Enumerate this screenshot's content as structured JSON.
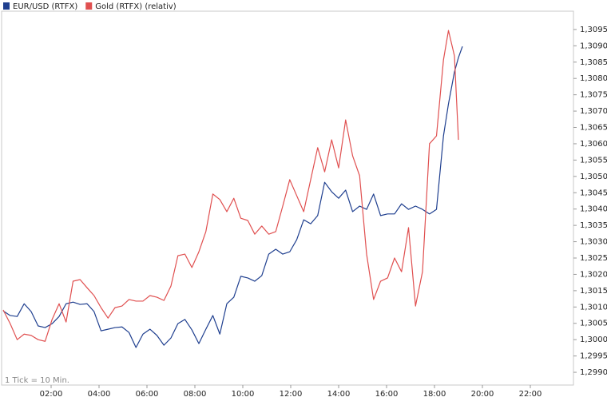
{
  "chart_data": {
    "type": "line",
    "footnote": "1 Tick = 10 Min.",
    "x": [
      0,
      17.5,
      35,
      52.5,
      70,
      87.5,
      105,
      122.5,
      140,
      157.5,
      175,
      192.5,
      210,
      227.5,
      245,
      262.5,
      280,
      297.5,
      315,
      332.5,
      350,
      367.5,
      385,
      402.5,
      420,
      437.5,
      455,
      472.5,
      490,
      507.5,
      525,
      542.5,
      560,
      577.5,
      595,
      612.5,
      630,
      647.5,
      665,
      682.5,
      700,
      717.5,
      735,
      752.5,
      770,
      787.5,
      805,
      822.5,
      840,
      857.5,
      875,
      892.5,
      910,
      927.5,
      945,
      962.5,
      980,
      997.5,
      1015,
      1032.5,
      1050,
      1067.5,
      1085,
      1102.5,
      1115,
      1130,
      1140,
      1150
    ],
    "series": [
      {
        "name": "EUR/USD (RTFX)",
        "color": "#1f3f8f",
        "values": [
          1.30088,
          1.30074,
          1.30071,
          1.3011,
          1.30086,
          1.30042,
          1.30037,
          1.30049,
          1.30071,
          1.3011,
          1.30115,
          1.30108,
          1.3011,
          1.30086,
          1.30027,
          1.30032,
          1.30037,
          1.30039,
          1.30022,
          1.29976,
          1.30017,
          1.30032,
          1.30013,
          1.29983,
          1.30005,
          1.30049,
          1.30062,
          1.3003,
          1.29988,
          1.30032,
          1.30074,
          1.30017,
          1.3011,
          1.3013,
          1.30194,
          1.30189,
          1.30179,
          1.30196,
          1.30262,
          1.30277,
          1.30262,
          1.30269,
          1.30306,
          1.30367,
          1.30355,
          1.3038,
          1.30482,
          1.30453,
          1.30433,
          1.30458,
          1.30392,
          1.30409,
          1.30399,
          1.30446,
          1.3038,
          1.30385,
          1.30385,
          1.30416,
          1.30399,
          1.30409,
          1.30399,
          1.30385,
          1.30399,
          1.30624,
          1.30722,
          1.3082,
          1.30864,
          1.30898
        ]
      },
      {
        "name": "Gold (RTFX) (relativ)",
        "color": "#e05050",
        "values": [
          1.30091,
          1.30049,
          1.3,
          1.30017,
          1.30013,
          1.3,
          1.29995,
          1.30062,
          1.3011,
          1.30054,
          1.30179,
          1.30184,
          1.30159,
          1.30135,
          1.30098,
          1.30066,
          1.30098,
          1.30103,
          1.30123,
          1.30118,
          1.30118,
          1.30135,
          1.3013,
          1.3012,
          1.30164,
          1.30257,
          1.30262,
          1.30221,
          1.30269,
          1.30331,
          1.30446,
          1.30429,
          1.30392,
          1.30433,
          1.30372,
          1.30365,
          1.30323,
          1.30348,
          1.30323,
          1.30331,
          1.30409,
          1.3049,
          1.30441,
          1.30392,
          1.3049,
          1.30588,
          1.30514,
          1.30612,
          1.30526,
          1.30673,
          1.30563,
          1.30502,
          1.30262,
          1.30123,
          1.30179,
          1.30189,
          1.3025,
          1.30208,
          1.30343,
          1.30103,
          1.30208,
          1.306,
          1.30624,
          1.30857,
          1.30947,
          1.30869,
          1.30612,
          null
        ]
      }
    ],
    "xlim": [
      -4,
      1428
    ],
    "xticks": [
      {
        "value": 120,
        "label": "02:00"
      },
      {
        "value": 240,
        "label": "04:00"
      },
      {
        "value": 360,
        "label": "06:00"
      },
      {
        "value": 480,
        "label": "08:00"
      },
      {
        "value": 600,
        "label": "10:00"
      },
      {
        "value": 720,
        "label": "12:00"
      },
      {
        "value": 840,
        "label": "14:00"
      },
      {
        "value": 960,
        "label": "16:00"
      },
      {
        "value": 1080,
        "label": "18:00"
      },
      {
        "value": 1200,
        "label": "20:00"
      },
      {
        "value": 1320,
        "label": "22:00"
      }
    ],
    "ylim": [
      1.29861,
      1.31006
    ],
    "yticks": [
      {
        "value": 1.299,
        "label": "1,2990"
      },
      {
        "value": 1.2995,
        "label": "1,2995"
      },
      {
        "value": 1.3,
        "label": "1,3000"
      },
      {
        "value": 1.3005,
        "label": "1,3005"
      },
      {
        "value": 1.301,
        "label": "1,3010"
      },
      {
        "value": 1.3015,
        "label": "1,3015"
      },
      {
        "value": 1.302,
        "label": "1,3020"
      },
      {
        "value": 1.3025,
        "label": "1,3025"
      },
      {
        "value": 1.303,
        "label": "1,3030"
      },
      {
        "value": 1.3035,
        "label": "1,3035"
      },
      {
        "value": 1.304,
        "label": "1,3040"
      },
      {
        "value": 1.3045,
        "label": "1,3045"
      },
      {
        "value": 1.305,
        "label": "1,3050"
      },
      {
        "value": 1.3055,
        "label": "1,3055"
      },
      {
        "value": 1.306,
        "label": "1,3060"
      },
      {
        "value": 1.3065,
        "label": "1,3065"
      },
      {
        "value": 1.307,
        "label": "1,3070"
      },
      {
        "value": 1.3075,
        "label": "1,3075"
      },
      {
        "value": 1.308,
        "label": "1,3080"
      },
      {
        "value": 1.3085,
        "label": "1,3085"
      },
      {
        "value": 1.309,
        "label": "1,3090"
      },
      {
        "value": 1.3095,
        "label": "1,3095"
      }
    ],
    "grid": false
  }
}
